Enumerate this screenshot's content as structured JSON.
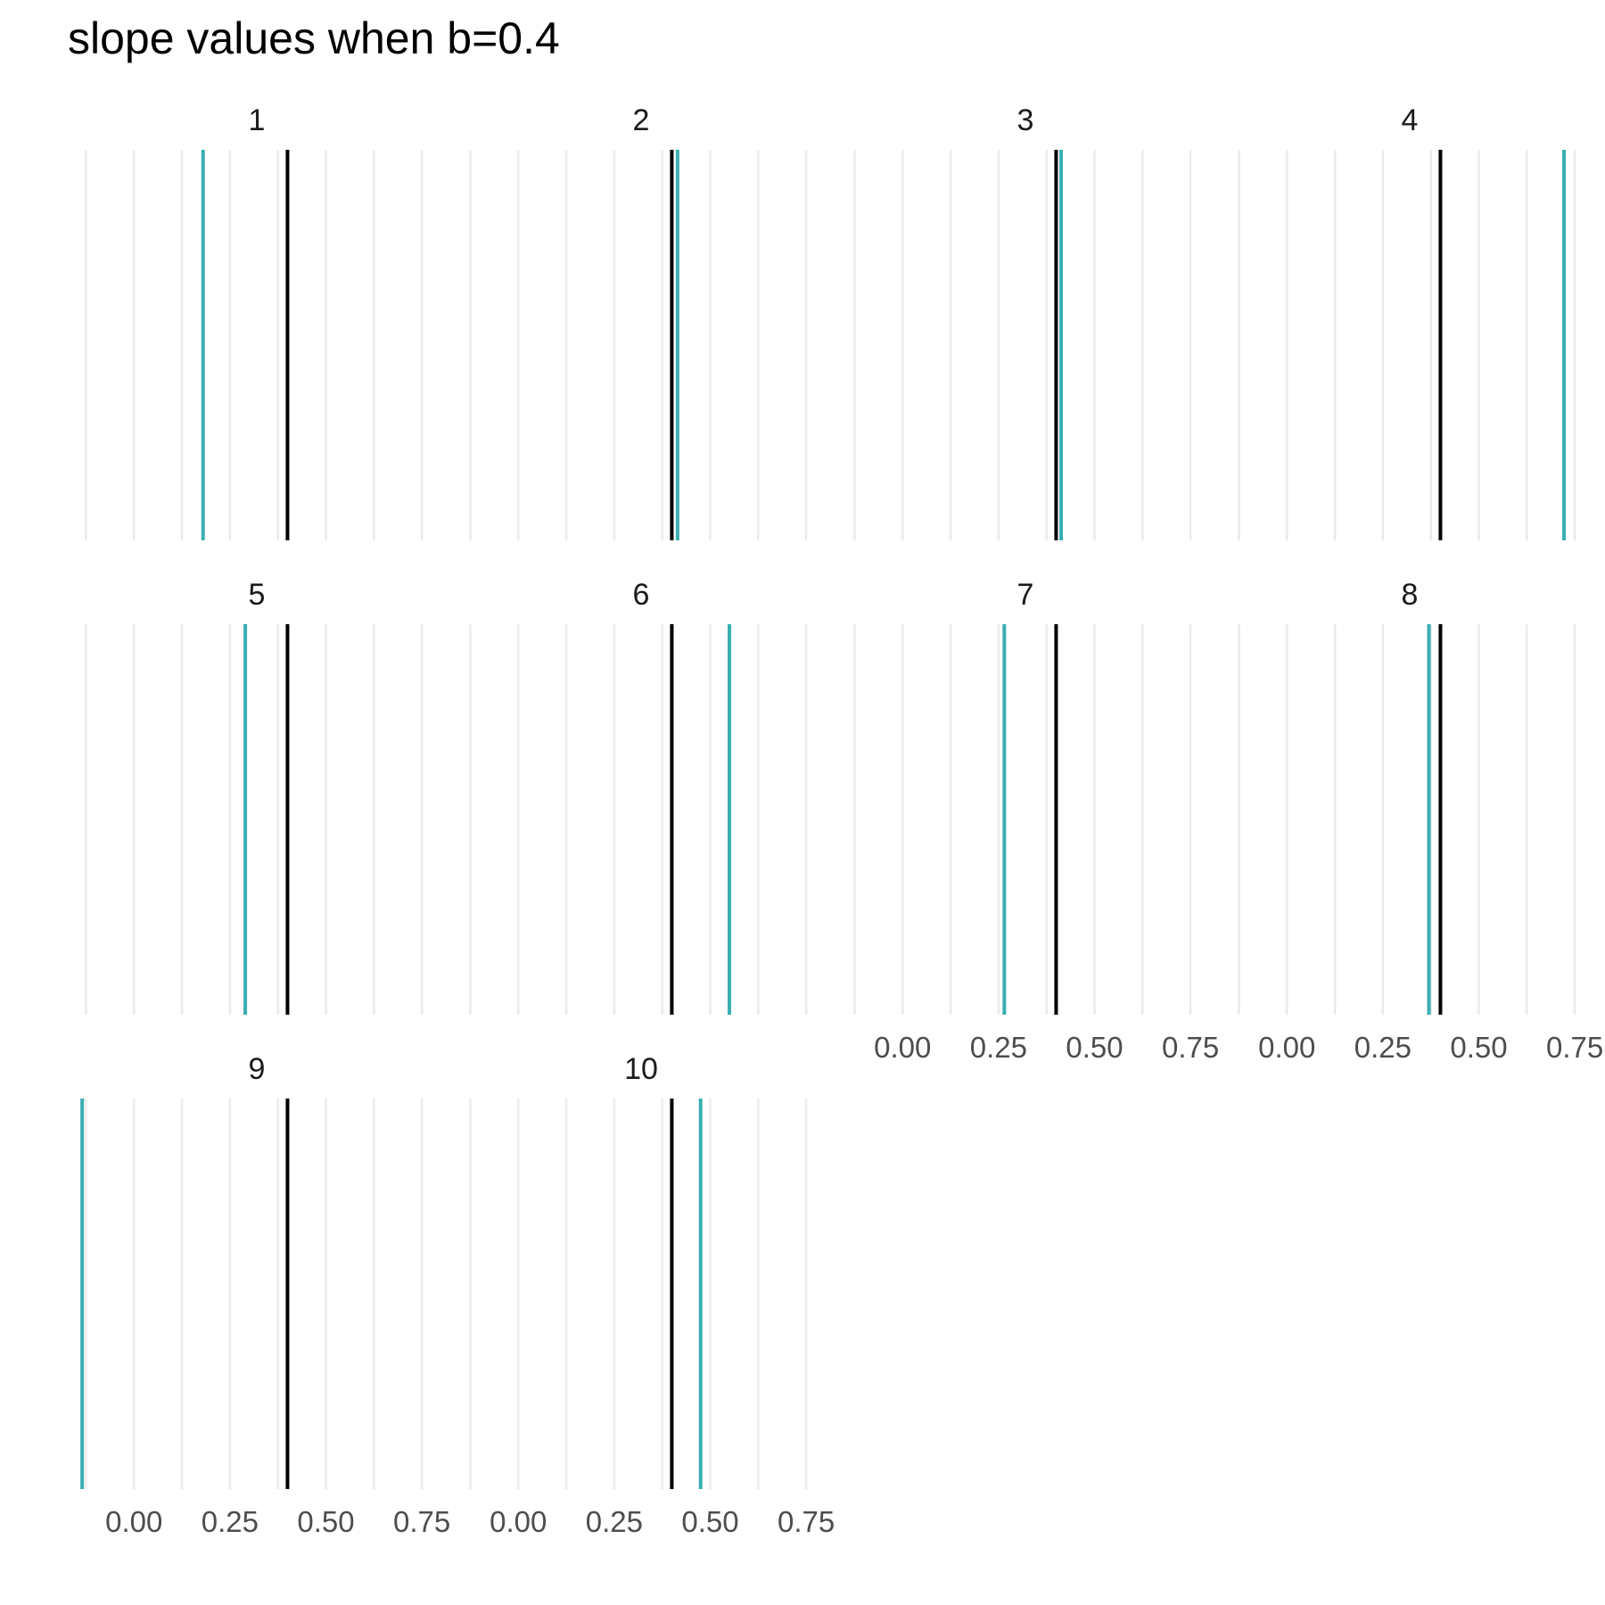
{
  "chart_data": {
    "type": "facet-vline",
    "title": "slope values when b=0.4",
    "xlabel": "",
    "ylabel": "",
    "x_ticks": [
      0.0,
      0.25,
      0.5,
      0.75
    ],
    "x_tick_labels": [
      "0.00",
      "0.25",
      "0.50",
      "0.75"
    ],
    "xlim": [
      -0.14,
      0.78
    ],
    "grid": true,
    "ncol": 4,
    "reference_value": 0.4,
    "colors": {
      "reference": "#000000",
      "estimate": "#3AAFB0",
      "grid": "#EBEBEB"
    },
    "panels": [
      {
        "label": "1",
        "reference": 0.4,
        "estimate": 0.18
      },
      {
        "label": "2",
        "reference": 0.4,
        "estimate": 0.415
      },
      {
        "label": "3",
        "reference": 0.4,
        "estimate": 0.413
      },
      {
        "label": "4",
        "reference": 0.4,
        "estimate": 0.722
      },
      {
        "label": "5",
        "reference": 0.4,
        "estimate": 0.29
      },
      {
        "label": "6",
        "reference": 0.4,
        "estimate": 0.55
      },
      {
        "label": "7",
        "reference": 0.4,
        "estimate": 0.265
      },
      {
        "label": "8",
        "reference": 0.4,
        "estimate": 0.37
      },
      {
        "label": "9",
        "reference": 0.4,
        "estimate": -0.135
      },
      {
        "label": "10",
        "reference": 0.4,
        "estimate": 0.475
      }
    ]
  }
}
